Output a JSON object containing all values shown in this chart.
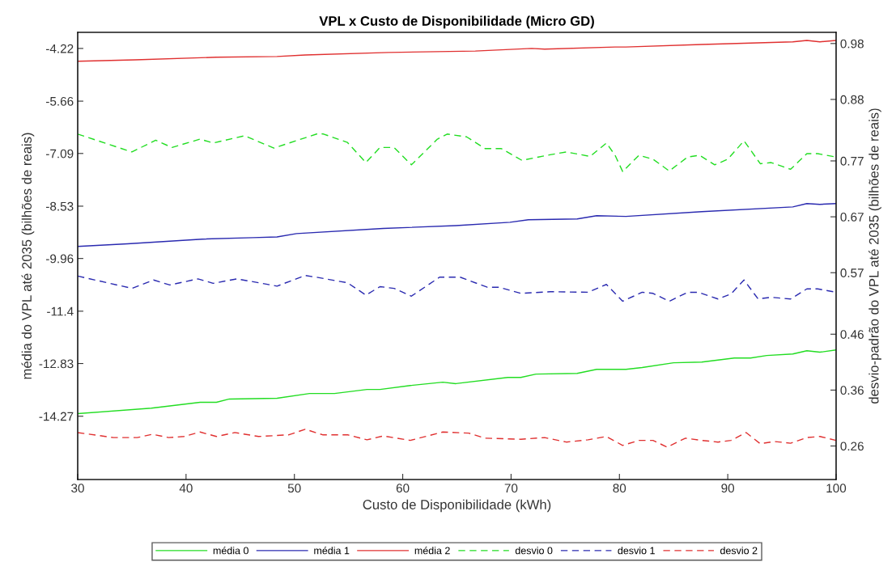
{
  "chart_data": {
    "type": "line",
    "title": "VPL x Custo de Disponibilidade (Micro GD)",
    "xlabel": "Custo de Disponibilidade (kWh)",
    "ylabel": "média do VPL até 2035 (bilhões de reais)",
    "y2label": "desvio-padrão do VPL até 2035 (bilhões de reais)",
    "xlim": [
      30,
      100
    ],
    "xticks": [
      30,
      40,
      50,
      60,
      70,
      80,
      90,
      100
    ],
    "ylim": [
      -16,
      -3.78
    ],
    "yticks": [
      -14.27,
      -12.83,
      -11.4,
      -9.96,
      -8.53,
      -7.09,
      -5.66,
      -4.22
    ],
    "y2lim": [
      0.2,
      1.0
    ],
    "y2ticks": [
      0.26,
      0.36,
      0.46,
      0.57,
      0.67,
      0.77,
      0.88,
      0.98
    ],
    "grid": false,
    "legend": "bottom",
    "series": [
      {
        "name": "média 0",
        "color": "#22dd22",
        "line_style": "solid",
        "x": [
          30,
          36.8,
          41.3,
          42.8,
          44.0,
          48.4,
          51.4,
          53.7,
          56.7,
          57.9,
          60.7,
          63.7,
          64.9,
          69.7,
          70.9,
          72.3,
          76.1,
          77.9,
          80.6,
          82.1,
          85.0,
          87.6,
          90.6,
          92.1,
          93.6,
          96.0,
          97.3,
          98.5,
          100
        ],
        "values": [
          -14.2,
          -14.05,
          -13.89,
          -13.89,
          -13.8,
          -13.78,
          -13.65,
          -13.65,
          -13.54,
          -13.54,
          -13.43,
          -13.34,
          -13.38,
          -13.21,
          -13.21,
          -13.12,
          -13.1,
          -12.99,
          -12.99,
          -12.94,
          -12.81,
          -12.79,
          -12.68,
          -12.68,
          -12.61,
          -12.57,
          -12.48,
          -12.52,
          -12.46
        ]
      },
      {
        "name": "média 1",
        "color": "#2a2ab0",
        "line_style": "solid",
        "x": [
          30,
          34.6,
          41.5,
          46.2,
          48.4,
          50.2,
          58.2,
          64.9,
          69.9,
          71.6,
          76.1,
          77.9,
          80.6,
          87.6,
          96.0,
          97.3,
          98.5,
          100
        ],
        "values": [
          -9.63,
          -9.56,
          -9.43,
          -9.39,
          -9.37,
          -9.28,
          -9.14,
          -9.06,
          -8.97,
          -8.9,
          -8.88,
          -8.79,
          -8.81,
          -8.68,
          -8.55,
          -8.46,
          -8.48,
          -8.46
        ]
      },
      {
        "name": "média 2",
        "color": "#e03030",
        "line_style": "solid",
        "x": [
          30,
          35.3,
          42.8,
          48.4,
          51.0,
          58.7,
          66.7,
          71.9,
          73.1,
          79.6,
          80.6,
          87.6,
          96.0,
          97.3,
          98.5,
          100
        ],
        "values": [
          -4.57,
          -4.53,
          -4.46,
          -4.44,
          -4.4,
          -4.33,
          -4.29,
          -4.22,
          -4.24,
          -4.18,
          -4.18,
          -4.11,
          -4.04,
          -4.0,
          -4.04,
          -4.0
        ]
      },
      {
        "name": "desvio 0",
        "color": "#22dd22",
        "line_style": "dashed",
        "axis": "y2",
        "x": [
          30,
          35.0,
          37.2,
          38.7,
          41.3,
          42.5,
          45.4,
          48.1,
          52.2,
          52.7,
          54.9,
          56.6,
          57.9,
          59.2,
          60.8,
          63.2,
          64.1,
          65.9,
          67.6,
          69.1,
          71.0,
          73.6,
          75.1,
          77.3,
          78.8,
          79.6,
          80.3,
          81.8,
          83.1,
          84.6,
          86.3,
          87.4,
          88.8,
          90.0,
          91.5,
          93.0,
          94.0,
          95.8,
          97.3,
          98.3,
          100
        ],
        "values": [
          0.818,
          0.786,
          0.807,
          0.794,
          0.809,
          0.802,
          0.815,
          0.793,
          0.819,
          0.818,
          0.803,
          0.767,
          0.794,
          0.794,
          0.763,
          0.809,
          0.818,
          0.813,
          0.792,
          0.792,
          0.771,
          0.781,
          0.786,
          0.778,
          0.802,
          0.78,
          0.751,
          0.78,
          0.773,
          0.752,
          0.777,
          0.78,
          0.763,
          0.773,
          0.806,
          0.765,
          0.767,
          0.755,
          0.783,
          0.783,
          0.777
        ]
      },
      {
        "name": "desvio 1",
        "color": "#2a2ab0",
        "line_style": "dashed",
        "axis": "y2",
        "x": [
          30,
          35.0,
          37.0,
          38.5,
          41.1,
          42.5,
          44.7,
          48.4,
          51.0,
          52.0,
          54.9,
          56.6,
          57.9,
          59.2,
          60.8,
          63.4,
          65.3,
          67.8,
          68.9,
          70.9,
          73.6,
          77.1,
          78.8,
          80.3,
          82.1,
          83.1,
          84.6,
          86.3,
          87.3,
          89.1,
          90.3,
          91.5,
          92.8,
          94.0,
          95.8,
          97.3,
          98.3,
          100
        ],
        "values": [
          0.564,
          0.542,
          0.557,
          0.548,
          0.559,
          0.551,
          0.559,
          0.546,
          0.565,
          0.562,
          0.552,
          0.53,
          0.545,
          0.542,
          0.528,
          0.562,
          0.562,
          0.544,
          0.544,
          0.533,
          0.536,
          0.535,
          0.549,
          0.519,
          0.535,
          0.533,
          0.519,
          0.535,
          0.535,
          0.523,
          0.532,
          0.557,
          0.523,
          0.526,
          0.523,
          0.541,
          0.541,
          0.535
        ]
      },
      {
        "name": "desvio 2",
        "color": "#e03030",
        "line_style": "dashed",
        "axis": "y2",
        "x": [
          30,
          33.3,
          35.5,
          36.9,
          38.4,
          39.8,
          41.3,
          42.8,
          44.5,
          46.7,
          49.5,
          51.0,
          52.6,
          54.9,
          56.7,
          58.2,
          60.7,
          63.7,
          66.1,
          67.6,
          70.9,
          73.1,
          75.1,
          77.1,
          78.8,
          80.3,
          81.8,
          83.1,
          84.4,
          86.1,
          87.6,
          89.1,
          90.3,
          91.7,
          93.0,
          94.3,
          95.8,
          97.3,
          98.5,
          100
        ],
        "values": [
          0.284,
          0.275,
          0.275,
          0.281,
          0.275,
          0.277,
          0.285,
          0.277,
          0.284,
          0.277,
          0.28,
          0.29,
          0.28,
          0.28,
          0.271,
          0.278,
          0.27,
          0.285,
          0.283,
          0.274,
          0.272,
          0.275,
          0.267,
          0.271,
          0.277,
          0.261,
          0.27,
          0.27,
          0.258,
          0.274,
          0.27,
          0.267,
          0.27,
          0.284,
          0.264,
          0.268,
          0.265,
          0.275,
          0.277,
          0.27
        ]
      }
    ]
  }
}
